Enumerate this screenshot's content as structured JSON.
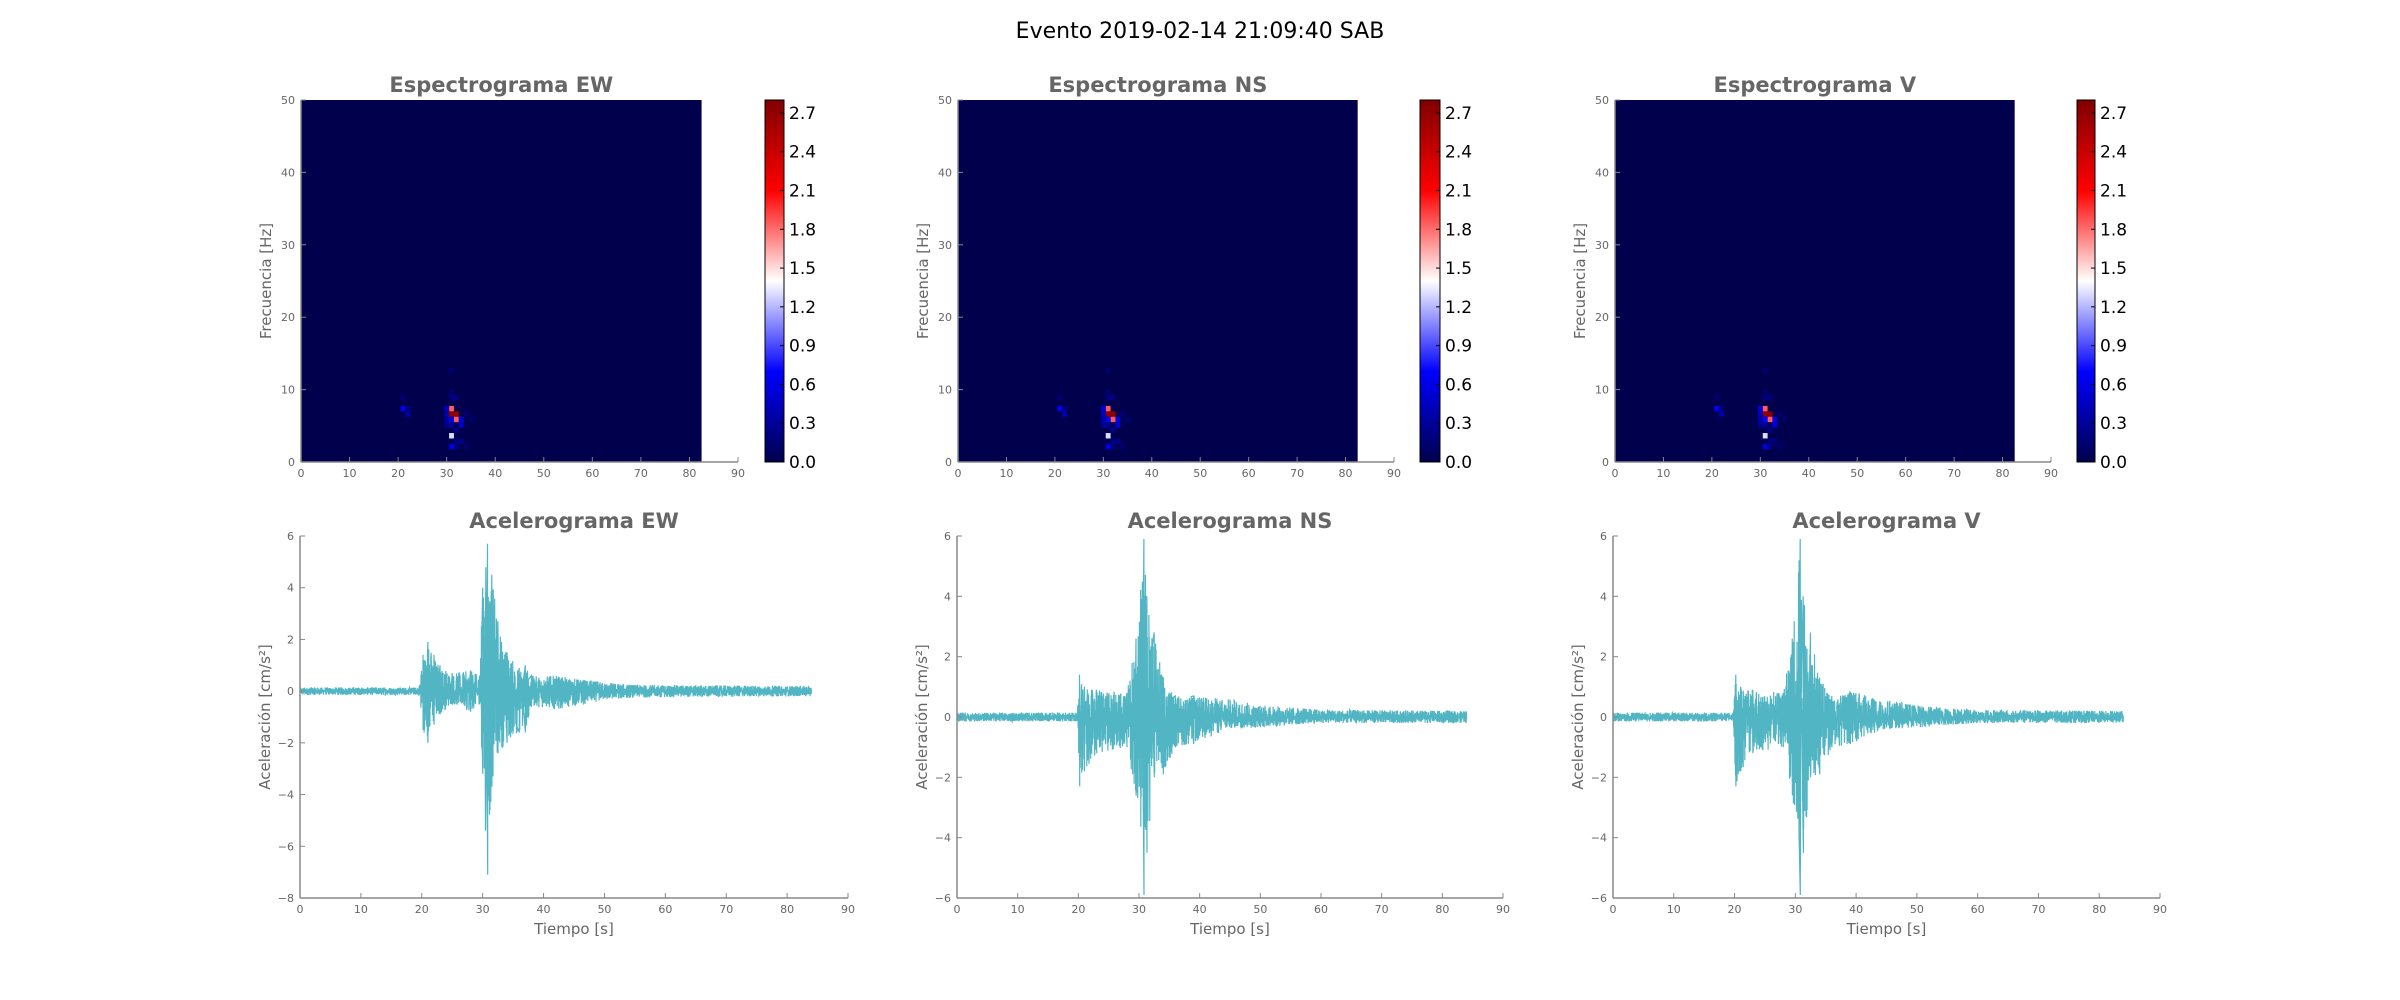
{
  "figure": {
    "title": "Evento 2019-02-14 21:09:40 SAB"
  },
  "chart_data": [
    {
      "type": "heatmap",
      "id": "spec-ew",
      "title": "Espectrograma EW",
      "xlabel": "",
      "ylabel": "Frecuencia [Hz]",
      "xlim": [
        0,
        90
      ],
      "ylim": [
        0,
        50
      ],
      "xticks": [
        "0",
        "10",
        "20",
        "30",
        "40",
        "50",
        "60",
        "70",
        "80",
        "90"
      ],
      "yticks": [
        "0",
        "10",
        "20",
        "30",
        "40",
        "50"
      ],
      "data_extent_t": [
        0,
        82.5
      ],
      "cell_dt": 1.0,
      "cell_df": 0.75,
      "background_value": 0.0,
      "cells": [
        [
          31,
          6.25,
          2.7
        ],
        [
          32,
          6.25,
          2.7
        ],
        [
          31,
          7.0,
          1.85
        ],
        [
          32,
          5.5,
          1.85
        ],
        [
          31,
          3.25,
          1.3
        ],
        [
          21,
          7.0,
          0.65
        ],
        [
          22,
          6.25,
          0.35
        ],
        [
          30,
          7.0,
          0.45
        ],
        [
          31,
          5.5,
          0.6
        ],
        [
          33,
          5.5,
          0.55
        ],
        [
          33,
          4.75,
          0.5
        ],
        [
          31,
          1.75,
          0.6
        ],
        [
          30,
          5.5,
          0.3
        ],
        [
          30,
          4.75,
          0.3
        ],
        [
          31,
          4.75,
          0.3
        ],
        [
          32,
          4.0,
          0.25
        ],
        [
          31,
          8.5,
          0.2
        ],
        [
          32,
          8.5,
          0.2
        ],
        [
          31,
          12.25,
          0.15
        ],
        [
          31,
          9.25,
          0.15
        ],
        [
          32,
          2.5,
          0.2
        ],
        [
          33,
          2.5,
          0.2
        ],
        [
          34,
          1.75,
          0.15
        ],
        [
          32,
          1.75,
          0.2
        ],
        [
          21,
          8.5,
          0.15
        ],
        [
          34,
          6.25,
          0.15
        ],
        [
          35,
          5.5,
          0.15
        ],
        [
          22,
          7.0,
          0.2
        ],
        [
          30,
          6.25,
          0.35
        ]
      ],
      "colorbar": {
        "range": [
          0,
          2.8
        ],
        "ticks": [
          "0.0",
          "0.3",
          "0.6",
          "0.9",
          "1.2",
          "1.5",
          "1.8",
          "2.1",
          "2.4",
          "2.7"
        ],
        "colormap": [
          "#00004c",
          "#0000ff",
          "#ffffff",
          "#ff0000",
          "#7f0000"
        ]
      }
    },
    {
      "type": "heatmap",
      "id": "spec-ns",
      "title": "Espectrograma NS",
      "xlabel": "",
      "ylabel": "Frecuencia [Hz]",
      "xlim": [
        0,
        90
      ],
      "ylim": [
        0,
        50
      ],
      "xticks": [
        "0",
        "10",
        "20",
        "30",
        "40",
        "50",
        "60",
        "70",
        "80",
        "90"
      ],
      "yticks": [
        "0",
        "10",
        "20",
        "30",
        "40",
        "50"
      ],
      "data_extent_t": [
        0,
        82.5
      ],
      "cell_dt": 1.0,
      "cell_df": 0.75,
      "background_value": 0.0,
      "cells": [
        [
          31,
          6.25,
          2.7
        ],
        [
          32,
          6.25,
          2.7
        ],
        [
          31,
          7.0,
          1.85
        ],
        [
          32,
          5.5,
          1.85
        ],
        [
          31,
          3.25,
          1.3
        ],
        [
          21,
          7.0,
          0.65
        ],
        [
          22,
          6.25,
          0.4
        ],
        [
          30,
          7.0,
          0.55
        ],
        [
          30,
          6.25,
          0.45
        ],
        [
          31,
          5.5,
          0.7
        ],
        [
          33,
          5.5,
          0.6
        ],
        [
          33,
          4.75,
          0.55
        ],
        [
          31,
          1.75,
          0.6
        ],
        [
          30,
          5.5,
          0.35
        ],
        [
          30,
          4.75,
          0.3
        ],
        [
          31,
          4.75,
          0.3
        ],
        [
          32,
          4.0,
          0.25
        ],
        [
          31,
          8.5,
          0.2
        ],
        [
          32,
          8.5,
          0.2
        ],
        [
          31,
          12.25,
          0.15
        ],
        [
          31,
          9.25,
          0.15
        ],
        [
          32,
          2.5,
          0.2
        ],
        [
          33,
          2.5,
          0.2
        ],
        [
          34,
          1.75,
          0.15
        ],
        [
          32,
          1.75,
          0.2
        ],
        [
          21,
          8.5,
          0.15
        ],
        [
          34,
          6.25,
          0.15
        ],
        [
          35,
          5.5,
          0.15
        ],
        [
          22,
          7.0,
          0.2
        ]
      ],
      "colorbar": {
        "range": [
          0,
          2.8
        ],
        "ticks": [
          "0.0",
          "0.3",
          "0.6",
          "0.9",
          "1.2",
          "1.5",
          "1.8",
          "2.1",
          "2.4",
          "2.7"
        ],
        "colormap": [
          "#00004c",
          "#0000ff",
          "#ffffff",
          "#ff0000",
          "#7f0000"
        ]
      }
    },
    {
      "type": "heatmap",
      "id": "spec-v",
      "title": "Espectrograma V",
      "xlabel": "",
      "ylabel": "Frecuencia [Hz]",
      "xlim": [
        0,
        90
      ],
      "ylim": [
        0,
        50
      ],
      "xticks": [
        "0",
        "10",
        "20",
        "30",
        "40",
        "50",
        "60",
        "70",
        "80",
        "90"
      ],
      "yticks": [
        "0",
        "10",
        "20",
        "30",
        "40",
        "50"
      ],
      "data_extent_t": [
        0,
        82.5
      ],
      "cell_dt": 1.0,
      "cell_df": 0.75,
      "background_value": 0.0,
      "cells": [
        [
          31,
          6.25,
          2.7
        ],
        [
          32,
          6.25,
          2.7
        ],
        [
          31,
          7.0,
          1.85
        ],
        [
          32,
          5.5,
          1.85
        ],
        [
          31,
          3.25,
          1.3
        ],
        [
          21,
          7.0,
          0.65
        ],
        [
          22,
          6.25,
          0.4
        ],
        [
          30,
          7.0,
          0.55
        ],
        [
          30,
          6.25,
          0.45
        ],
        [
          31,
          5.5,
          0.7
        ],
        [
          33,
          5.5,
          0.6
        ],
        [
          33,
          4.75,
          0.6
        ],
        [
          31,
          1.75,
          0.6
        ],
        [
          30,
          5.5,
          0.35
        ],
        [
          30,
          4.75,
          0.3
        ],
        [
          31,
          4.75,
          0.3
        ],
        [
          32,
          4.0,
          0.25
        ],
        [
          31,
          8.5,
          0.2
        ],
        [
          32,
          8.5,
          0.2
        ],
        [
          31,
          12.25,
          0.15
        ],
        [
          31,
          9.25,
          0.15
        ],
        [
          32,
          2.5,
          0.2
        ],
        [
          33,
          2.5,
          0.2
        ],
        [
          34,
          1.75,
          0.15
        ],
        [
          32,
          1.75,
          0.2
        ],
        [
          21,
          8.5,
          0.15
        ],
        [
          34,
          6.25,
          0.15
        ],
        [
          35,
          5.5,
          0.15
        ],
        [
          22,
          7.0,
          0.2
        ]
      ],
      "colorbar": {
        "range": [
          0,
          2.8
        ],
        "ticks": [
          "0.0",
          "0.3",
          "0.6",
          "0.9",
          "1.2",
          "1.5",
          "1.8",
          "2.1",
          "2.4",
          "2.7"
        ],
        "colormap": [
          "#00004c",
          "#0000ff",
          "#ffffff",
          "#ff0000",
          "#7f0000"
        ]
      }
    },
    {
      "type": "line",
      "id": "acc-ew",
      "title": "Acelerograma EW",
      "xlabel": "Tiempo [s]",
      "ylabel": "Aceleración [cm/s²]",
      "xlim": [
        0,
        90
      ],
      "ylim": [
        -8,
        6
      ],
      "xticks": [
        "0",
        "10",
        "20",
        "30",
        "40",
        "50",
        "60",
        "70",
        "80",
        "90"
      ],
      "yticks": [
        "−8",
        "−6",
        "−4",
        "−2",
        "0",
        "2",
        "4",
        "6"
      ],
      "color": "#52b5c4",
      "t_end": 84,
      "envelope": [
        [
          0,
          0.15,
          -0.15
        ],
        [
          19.5,
          0.15,
          -0.15
        ],
        [
          20.2,
          1.4,
          -1.5
        ],
        [
          21,
          1.9,
          -2.0
        ],
        [
          22,
          1.4,
          -1.3
        ],
        [
          23,
          1.0,
          -0.9
        ],
        [
          25,
          0.7,
          -0.5
        ],
        [
          28,
          0.8,
          -0.8
        ],
        [
          29.5,
          0.6,
          -0.5
        ],
        [
          30,
          4.0,
          -3.2
        ],
        [
          30.8,
          5.7,
          -7.1
        ],
        [
          31.5,
          4.5,
          -3.7
        ],
        [
          32.5,
          2.7,
          -2.4
        ],
        [
          34,
          1.5,
          -2.0
        ],
        [
          36,
          0.9,
          -1.6
        ],
        [
          37,
          1.0,
          -1.6
        ],
        [
          38,
          0.6,
          -0.6
        ],
        [
          42,
          0.6,
          -0.7
        ],
        [
          45,
          0.5,
          -0.6
        ],
        [
          50,
          0.35,
          -0.35
        ],
        [
          55,
          0.25,
          -0.25
        ],
        [
          84,
          0.2,
          -0.2
        ]
      ]
    },
    {
      "type": "line",
      "id": "acc-ns",
      "title": "Acelerograma NS",
      "xlabel": "Tiempo [s]",
      "ylabel": "Aceleración [cm/s²]",
      "xlim": [
        0,
        90
      ],
      "ylim": [
        -6,
        6
      ],
      "xticks": [
        "0",
        "10",
        "20",
        "30",
        "40",
        "50",
        "60",
        "70",
        "80",
        "90"
      ],
      "yticks": [
        "−6",
        "−4",
        "−2",
        "0",
        "2",
        "4",
        "6"
      ],
      "color": "#52b5c4",
      "t_end": 84,
      "envelope": [
        [
          0,
          0.15,
          -0.15
        ],
        [
          19.8,
          0.15,
          -0.15
        ],
        [
          20.2,
          1.4,
          -2.3
        ],
        [
          21,
          1.0,
          -1.8
        ],
        [
          23,
          0.9,
          -1.2
        ],
        [
          28,
          0.8,
          -1.0
        ],
        [
          29.5,
          2.6,
          -2.6
        ],
        [
          30.8,
          5.9,
          -5.9
        ],
        [
          31.3,
          4.0,
          -4.5
        ],
        [
          32.5,
          2.8,
          -2.0
        ],
        [
          34,
          1.3,
          -1.9
        ],
        [
          36,
          0.7,
          -1.0
        ],
        [
          39,
          0.7,
          -0.9
        ],
        [
          45,
          0.6,
          -0.4
        ],
        [
          50,
          0.4,
          -0.35
        ],
        [
          60,
          0.25,
          -0.2
        ],
        [
          84,
          0.2,
          -0.2
        ]
      ]
    },
    {
      "type": "line",
      "id": "acc-v",
      "title": "Acelerograma V",
      "xlabel": "Tiempo [s]",
      "ylabel": "Aceleración [cm/s²]",
      "xlim": [
        0,
        90
      ],
      "ylim": [
        -6,
        6
      ],
      "xticks": [
        "0",
        "10",
        "20",
        "30",
        "40",
        "50",
        "60",
        "70",
        "80",
        "90"
      ],
      "yticks": [
        "−6",
        "−4",
        "−2",
        "0",
        "2",
        "4",
        "6"
      ],
      "color": "#52b5c4",
      "t_end": 84,
      "envelope": [
        [
          0,
          0.15,
          -0.15
        ],
        [
          19.8,
          0.15,
          -0.15
        ],
        [
          20.2,
          1.4,
          -2.3
        ],
        [
          21,
          1.0,
          -1.8
        ],
        [
          23,
          0.9,
          -1.2
        ],
        [
          28,
          0.8,
          -1.0
        ],
        [
          29.5,
          2.6,
          -2.6
        ],
        [
          30.8,
          5.9,
          -5.9
        ],
        [
          31.3,
          4.0,
          -4.5
        ],
        [
          32.5,
          2.8,
          -2.0
        ],
        [
          34,
          1.3,
          -1.9
        ],
        [
          36,
          0.7,
          -1.0
        ],
        [
          39,
          0.85,
          -0.9
        ],
        [
          45,
          0.6,
          -0.4
        ],
        [
          50,
          0.4,
          -0.35
        ],
        [
          60,
          0.25,
          -0.2
        ],
        [
          84,
          0.2,
          -0.2
        ]
      ]
    }
  ]
}
